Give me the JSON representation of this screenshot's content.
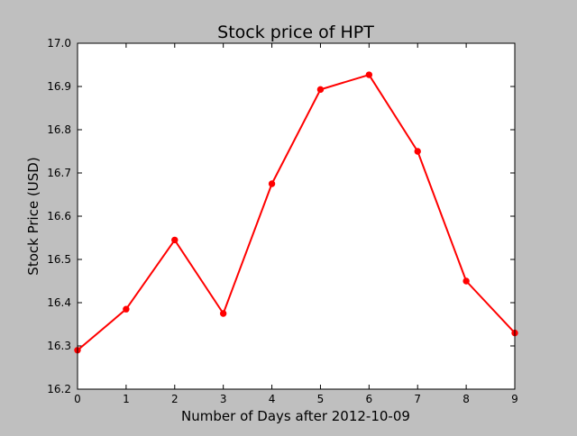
{
  "chart_data": {
    "type": "line",
    "title": "Stock price of HPT",
    "xlabel": "Number of Days after 2012-10-09",
    "ylabel": "Stock Price (USD)",
    "xlim": [
      0,
      9
    ],
    "ylim": [
      16.2,
      17.0
    ],
    "xticks": [
      "0",
      "1",
      "2",
      "3",
      "4",
      "5",
      "6",
      "7",
      "8",
      "9"
    ],
    "yticks": [
      "16.2",
      "16.3",
      "16.4",
      "16.5",
      "16.6",
      "16.7",
      "16.8",
      "16.9",
      "17.0"
    ],
    "x": [
      0,
      1,
      2,
      3,
      4,
      5,
      6,
      7,
      8,
      9
    ],
    "series": [
      {
        "values": [
          16.29,
          16.385,
          16.545,
          16.375,
          16.675,
          16.893,
          16.927,
          16.75,
          16.45,
          16.33
        ],
        "color": "#ff0000",
        "marker": "circle"
      }
    ],
    "grid": false,
    "colors": {
      "figure_background": "#bfbfbf",
      "axes_background": "#ffffff",
      "line": "#ff0000"
    }
  }
}
